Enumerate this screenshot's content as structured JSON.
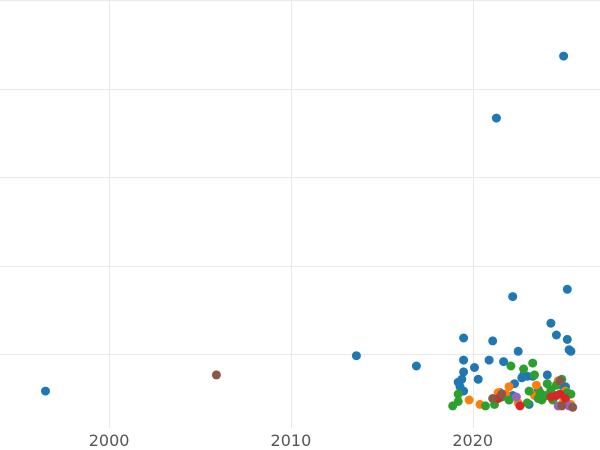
{
  "chart_data": {
    "type": "scatter",
    "title": "",
    "xlabel": "",
    "ylabel": "",
    "xlim": [
      1994,
      2027
    ],
    "ylim": [
      -2,
      27
    ],
    "x_ticks": [
      2000,
      2010,
      2020
    ],
    "x_tick_labels": [
      "2000",
      "2010",
      "2020"
    ],
    "y_gridlines": [
      3,
      9,
      15,
      21,
      27
    ],
    "grid": true,
    "legend": "none",
    "series": [
      {
        "color": "#1f77b4",
        "points": [
          [
            1996.5,
            0.5
          ],
          [
            2013.6,
            2.9
          ],
          [
            2016.9,
            2.2
          ],
          [
            2019.2,
            1.1
          ],
          [
            2019.3,
            0.8
          ],
          [
            2019.4,
            1.3
          ],
          [
            2019.5,
            0.5
          ],
          [
            2019.5,
            1.8
          ],
          [
            2019.5,
            2.6
          ],
          [
            2019.5,
            4.1
          ],
          [
            2020.1,
            2.1
          ],
          [
            2020.3,
            1.3
          ],
          [
            2020.9,
            2.6
          ],
          [
            2021.1,
            3.9
          ],
          [
            2021.3,
            19.0
          ],
          [
            2021.7,
            2.5
          ],
          [
            2022.0,
            -0.1
          ],
          [
            2022.2,
            0.2
          ],
          [
            2022.2,
            6.9
          ],
          [
            2022.3,
            1.0
          ],
          [
            2022.5,
            3.2
          ],
          [
            2022.7,
            1.4
          ],
          [
            2022.8,
            1.6
          ],
          [
            2023.0,
            1.5
          ],
          [
            2023.1,
            -0.4
          ],
          [
            2023.3,
            1.5
          ],
          [
            2023.6,
            0.6
          ],
          [
            2024.1,
            1.6
          ],
          [
            2024.3,
            5.1
          ],
          [
            2024.6,
            4.3
          ],
          [
            2024.8,
            1.1
          ],
          [
            2025.0,
            23.2
          ],
          [
            2025.1,
            0.8
          ],
          [
            2025.2,
            7.4
          ],
          [
            2025.2,
            4.0
          ],
          [
            2025.3,
            3.3
          ],
          [
            2025.4,
            3.2
          ],
          [
            2023.9,
            0.1
          ],
          [
            2024.9,
            0.9
          ],
          [
            2021.5,
            0.4
          ]
        ]
      },
      {
        "color": "#ff7f0e",
        "points": [
          [
            2019.8,
            -0.1
          ],
          [
            2020.4,
            -0.4
          ],
          [
            2021.4,
            0.4
          ],
          [
            2021.8,
            0.3
          ],
          [
            2022.0,
            0.8
          ],
          [
            2022.5,
            -0.3
          ],
          [
            2023.4,
            0.2
          ],
          [
            2023.5,
            0.9
          ],
          [
            2024.2,
            0.3
          ],
          [
            2024.7,
            1.2
          ],
          [
            2025.0,
            -0.2
          ],
          [
            2025.1,
            0.5
          ],
          [
            2025.4,
            -0.4
          ]
        ]
      },
      {
        "color": "#2ca02c",
        "points": [
          [
            2018.9,
            -0.5
          ],
          [
            2019.2,
            -0.2
          ],
          [
            2019.2,
            0.3
          ],
          [
            2020.7,
            -0.5
          ],
          [
            2021.2,
            -0.4
          ],
          [
            2021.6,
            0.1
          ],
          [
            2022.0,
            -0.1
          ],
          [
            2022.1,
            2.2
          ],
          [
            2022.8,
            2.0
          ],
          [
            2023.0,
            -0.3
          ],
          [
            2023.1,
            0.5
          ],
          [
            2023.3,
            2.4
          ],
          [
            2023.4,
            1.6
          ],
          [
            2023.7,
            0.4
          ],
          [
            2023.8,
            -0.1
          ],
          [
            2024.0,
            0.2
          ],
          [
            2024.1,
            1.0
          ],
          [
            2024.3,
            0.6
          ],
          [
            2024.5,
            0.1
          ],
          [
            2024.6,
            0.9
          ],
          [
            2024.9,
            1.3
          ],
          [
            2025.2,
            0.4
          ],
          [
            2025.4,
            0.3
          ],
          [
            2023.6,
            0.0
          ],
          [
            2024.4,
            -0.1
          ]
        ]
      },
      {
        "color": "#d62728",
        "points": [
          [
            2021.4,
            0.0
          ],
          [
            2022.6,
            -0.5
          ],
          [
            2024.3,
            0.1
          ],
          [
            2024.8,
            0.3
          ],
          [
            2025.1,
            0.0
          ],
          [
            2024.6,
            0.2
          ]
        ]
      },
      {
        "color": "#9467bd",
        "points": [
          [
            2022.4,
            0.1
          ],
          [
            2024.7,
            -0.5
          ],
          [
            2025.3,
            -0.5
          ]
        ]
      },
      {
        "color": "#8c564b",
        "points": [
          [
            2005.9,
            1.6
          ],
          [
            2021.1,
            0.0
          ],
          [
            2021.6,
            0.3
          ],
          [
            2024.9,
            -0.5
          ],
          [
            2025.5,
            -0.6
          ],
          [
            2024.8,
            1.2
          ]
        ]
      }
    ]
  }
}
